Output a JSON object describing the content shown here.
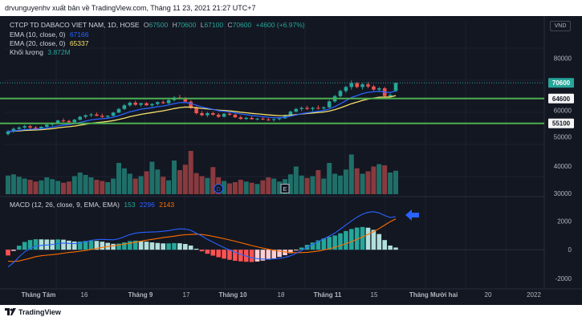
{
  "header": {
    "publish_line": "drvunguyenhv xuất bản về TradingView.com, Tháng 11 23, 2021 21:27 UTC+7"
  },
  "symbol": {
    "name": "CTCP TD DABACO VIET NAM, 1D, HOSE",
    "o_label": "O",
    "o": "67500",
    "h_label": "H",
    "h": "70600",
    "l_label": "L",
    "l": "67100",
    "c_label": "C",
    "c": "70600",
    "change": "+4600 (+6.97%)"
  },
  "indicators": {
    "ema10_label": "EMA (10, close, 0)",
    "ema10_value": "67166",
    "ema20_label": "EMA (20, close, 0)",
    "ema20_value": "65337",
    "volume_label": "Khối lượng",
    "volume_value": "3.872M",
    "macd_label": "MACD (12, 26, close, 9, EMA, EMA)",
    "macd_hist": "153",
    "macd_line": "2296",
    "macd_signal": "2143"
  },
  "currency_badge": "VND",
  "price_labels": {
    "last": "70600",
    "support1": "64600",
    "support2": "55100"
  },
  "price_axis_ticks": [
    "80000",
    "60000",
    "50000",
    "40000",
    "30000"
  ],
  "macd_axis_ticks": [
    "2000",
    "0",
    "-2000"
  ],
  "time_axis_ticks": [
    "Tháng Tám",
    "16",
    "Tháng 9",
    "17",
    "Tháng 10",
    "18",
    "Tháng 11",
    "15",
    "Tháng Mười hai",
    "20",
    "2022"
  ],
  "event_markers": [
    "D",
    "E"
  ],
  "footer": {
    "brand": "TradingView"
  },
  "colors": {
    "background": "#131722",
    "up": "#26a69a",
    "down": "#ef5350",
    "ema10": "#2962ff",
    "ema20": "#f6e16a",
    "support_line": "#4caf50",
    "macd_line": "#2962ff",
    "signal_line": "#ff6d00",
    "arrow": "#2962ff"
  },
  "chart_data": {
    "type": "candlestick",
    "title": "CTCP TD DABACO VIET NAM, 1D, HOSE",
    "ylim": [
      28000,
      90000
    ],
    "support_levels": [
      64600,
      55100
    ],
    "last_close": 70600,
    "candles": [
      {
        "o": 51000,
        "h": 52500,
        "l": 50500,
        "c": 52000
      },
      {
        "o": 52000,
        "h": 53500,
        "l": 51500,
        "c": 53000
      },
      {
        "o": 53000,
        "h": 54000,
        "l": 52500,
        "c": 53500
      },
      {
        "o": 53500,
        "h": 54500,
        "l": 53000,
        "c": 54000
      },
      {
        "o": 54000,
        "h": 54500,
        "l": 53000,
        "c": 53500
      },
      {
        "o": 53500,
        "h": 54000,
        "l": 52500,
        "c": 53000
      },
      {
        "o": 53000,
        "h": 54000,
        "l": 52500,
        "c": 53800
      },
      {
        "o": 53800,
        "h": 55000,
        "l": 53500,
        "c": 54600
      },
      {
        "o": 54600,
        "h": 55500,
        "l": 54000,
        "c": 55200
      },
      {
        "o": 55200,
        "h": 56500,
        "l": 55000,
        "c": 56200
      },
      {
        "o": 56200,
        "h": 57000,
        "l": 55500,
        "c": 56000
      },
      {
        "o": 56000,
        "h": 56500,
        "l": 55000,
        "c": 55500
      },
      {
        "o": 55500,
        "h": 56800,
        "l": 55200,
        "c": 56500
      },
      {
        "o": 56500,
        "h": 58000,
        "l": 56200,
        "c": 57600
      },
      {
        "o": 57600,
        "h": 58500,
        "l": 57000,
        "c": 58200
      },
      {
        "o": 58200,
        "h": 59000,
        "l": 57500,
        "c": 58500
      },
      {
        "o": 58500,
        "h": 59200,
        "l": 57800,
        "c": 58000
      },
      {
        "o": 58000,
        "h": 58800,
        "l": 57200,
        "c": 57600
      },
      {
        "o": 57600,
        "h": 58200,
        "l": 57000,
        "c": 58000
      },
      {
        "o": 58000,
        "h": 59500,
        "l": 57800,
        "c": 59200
      },
      {
        "o": 59200,
        "h": 61000,
        "l": 59000,
        "c": 60600
      },
      {
        "o": 60600,
        "h": 62500,
        "l": 60200,
        "c": 62000
      },
      {
        "o": 62000,
        "h": 63500,
        "l": 61500,
        "c": 63000
      },
      {
        "o": 63000,
        "h": 63800,
        "l": 61800,
        "c": 62200
      },
      {
        "o": 62200,
        "h": 63000,
        "l": 61500,
        "c": 62800
      },
      {
        "o": 62800,
        "h": 63200,
        "l": 61800,
        "c": 62000
      },
      {
        "o": 62000,
        "h": 62800,
        "l": 61500,
        "c": 62500
      },
      {
        "o": 62500,
        "h": 63500,
        "l": 62000,
        "c": 63200
      },
      {
        "o": 63200,
        "h": 64000,
        "l": 62500,
        "c": 62800
      },
      {
        "o": 62800,
        "h": 64500,
        "l": 62500,
        "c": 64000
      },
      {
        "o": 64000,
        "h": 65500,
        "l": 63500,
        "c": 65000
      },
      {
        "o": 65000,
        "h": 66000,
        "l": 64200,
        "c": 64600
      },
      {
        "o": 64600,
        "h": 65200,
        "l": 63000,
        "c": 63400
      },
      {
        "o": 63400,
        "h": 64000,
        "l": 60500,
        "c": 61000
      },
      {
        "o": 61000,
        "h": 61500,
        "l": 58500,
        "c": 59000
      },
      {
        "o": 59000,
        "h": 59800,
        "l": 57800,
        "c": 58200
      },
      {
        "o": 58200,
        "h": 59500,
        "l": 57500,
        "c": 59000
      },
      {
        "o": 59000,
        "h": 59600,
        "l": 58000,
        "c": 58400
      },
      {
        "o": 58400,
        "h": 59000,
        "l": 57200,
        "c": 57600
      },
      {
        "o": 57600,
        "h": 59000,
        "l": 57400,
        "c": 58800
      },
      {
        "o": 58800,
        "h": 59400,
        "l": 58000,
        "c": 58400
      },
      {
        "o": 58400,
        "h": 58800,
        "l": 57200,
        "c": 57400
      },
      {
        "o": 57400,
        "h": 58000,
        "l": 56500,
        "c": 56800
      },
      {
        "o": 56800,
        "h": 57600,
        "l": 56400,
        "c": 57200
      },
      {
        "o": 57200,
        "h": 57800,
        "l": 56500,
        "c": 56700
      },
      {
        "o": 56700,
        "h": 57200,
        "l": 56200,
        "c": 56900
      },
      {
        "o": 56900,
        "h": 57400,
        "l": 56300,
        "c": 56600
      },
      {
        "o": 56600,
        "h": 57200,
        "l": 56000,
        "c": 56400
      },
      {
        "o": 56400,
        "h": 57000,
        "l": 55800,
        "c": 56700
      },
      {
        "o": 56700,
        "h": 57300,
        "l": 56200,
        "c": 57000
      },
      {
        "o": 57000,
        "h": 58500,
        "l": 56800,
        "c": 58200
      },
      {
        "o": 58200,
        "h": 60000,
        "l": 58000,
        "c": 59600
      },
      {
        "o": 59600,
        "h": 61000,
        "l": 59200,
        "c": 60600
      },
      {
        "o": 60600,
        "h": 61500,
        "l": 59800,
        "c": 61000
      },
      {
        "o": 61000,
        "h": 61800,
        "l": 60200,
        "c": 60600
      },
      {
        "o": 60600,
        "h": 61400,
        "l": 59800,
        "c": 61000
      },
      {
        "o": 61000,
        "h": 62000,
        "l": 60400,
        "c": 60800
      },
      {
        "o": 60800,
        "h": 61600,
        "l": 60200,
        "c": 61200
      },
      {
        "o": 61200,
        "h": 64000,
        "l": 61000,
        "c": 63500
      },
      {
        "o": 63500,
        "h": 66000,
        "l": 63000,
        "c": 65500
      },
      {
        "o": 65500,
        "h": 68000,
        "l": 65000,
        "c": 67500
      },
      {
        "o": 67500,
        "h": 69500,
        "l": 66800,
        "c": 69000
      },
      {
        "o": 69000,
        "h": 71500,
        "l": 68000,
        "c": 70500
      },
      {
        "o": 70500,
        "h": 71000,
        "l": 68500,
        "c": 69000
      },
      {
        "o": 69000,
        "h": 70500,
        "l": 68000,
        "c": 70000
      },
      {
        "o": 70000,
        "h": 70800,
        "l": 68500,
        "c": 69200
      },
      {
        "o": 69200,
        "h": 69800,
        "l": 67500,
        "c": 68000
      },
      {
        "o": 68000,
        "h": 69000,
        "l": 67000,
        "c": 68500
      },
      {
        "o": 68500,
        "h": 69000,
        "l": 64800,
        "c": 65500
      },
      {
        "o": 65500,
        "h": 66500,
        "l": 64600,
        "c": 66000
      },
      {
        "o": 67500,
        "h": 70600,
        "l": 67100,
        "c": 70600
      }
    ],
    "volume": [
      3.1,
      3.3,
      2.9,
      2.6,
      2.4,
      2.1,
      2.3,
      2.8,
      2.5,
      2.2,
      1.9,
      2.1,
      3.0,
      3.6,
      3.2,
      2.8,
      2.4,
      2.2,
      2.0,
      2.6,
      5.2,
      4.3,
      3.4,
      2.6,
      3.0,
      3.8,
      5.4,
      4.1,
      2.9,
      2.3,
      5.6,
      4.0,
      4.9,
      7.2,
      3.5,
      3.0,
      2.7,
      4.5,
      2.8,
      2.2,
      1.8,
      2.0,
      2.4,
      2.1,
      1.9,
      1.7,
      2.3,
      2.8,
      2.6,
      2.1,
      2.5,
      3.3,
      4.6,
      3.1,
      2.7,
      3.0,
      4.0,
      2.6,
      5.2,
      3.4,
      3.1,
      4.1,
      6.6,
      4.3,
      3.4,
      3.8,
      4.6,
      5.0,
      4.8,
      3.6,
      3.9
    ],
    "macd": {
      "ylim": [
        -2500,
        3300
      ],
      "macd": [
        -1200,
        -900,
        -500,
        -150,
        80,
        250,
        300,
        330,
        360,
        420,
        460,
        440,
        420,
        470,
        560,
        650,
        700,
        720,
        700,
        690,
        760,
        900,
        1050,
        1150,
        1200,
        1220,
        1230,
        1250,
        1280,
        1330,
        1400,
        1450,
        1440,
        1350,
        1150,
        950,
        720,
        520,
        330,
        150,
        -20,
        -180,
        -320,
        -450,
        -560,
        -620,
        -650,
        -660,
        -640,
        -600,
        -530,
        -420,
        -250,
        -50,
        160,
        360,
        560,
        760,
        950,
        1160,
        1430,
        1720,
        2000,
        2260,
        2470,
        2600,
        2640,
        2560,
        2380,
        2240,
        2296
      ],
      "signal": [
        -800,
        -820,
        -780,
        -690,
        -590,
        -480,
        -420,
        -380,
        -340,
        -300,
        -240,
        -190,
        -150,
        -100,
        -50,
        20,
        90,
        160,
        220,
        280,
        330,
        390,
        450,
        520,
        590,
        660,
        720,
        780,
        840,
        890,
        940,
        1000,
        1040,
        1060,
        1080,
        1060,
        1000,
        930,
        850,
        770,
        680,
        590,
        490,
        390,
        290,
        200,
        110,
        30,
        -40,
        -100,
        -150,
        -180,
        -200,
        -200,
        -180,
        -140,
        -90,
        -20,
        60,
        170,
        290,
        420,
        560,
        720,
        890,
        1070,
        1260,
        1470,
        1710,
        1950,
        2143
      ]
    }
  }
}
